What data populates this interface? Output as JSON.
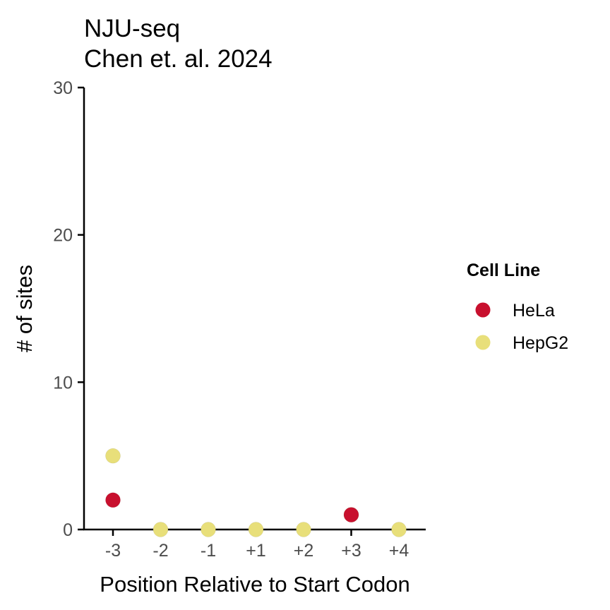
{
  "chart_data": {
    "type": "scatter",
    "title": "NJU-seq",
    "subtitle": "Chen et. al. 2024",
    "xlabel": "Position Relative to Start Codon",
    "ylabel": "# of sites",
    "categories": [
      "-3",
      "-2",
      "-1",
      "+1",
      "+2",
      "+3",
      "+4"
    ],
    "ylim": [
      0,
      30
    ],
    "yticks": [
      0,
      10,
      20,
      30
    ],
    "grid": false,
    "legend": {
      "title": "Cell Line",
      "placement": "right"
    },
    "series": [
      {
        "name": "HepG2",
        "color": "#E8DF7A",
        "values": [
          5,
          0,
          0,
          0,
          0,
          1,
          0
        ]
      },
      {
        "name": "HeLa",
        "color": "#C8102E",
        "values": [
          2,
          null,
          null,
          null,
          null,
          1,
          null
        ]
      }
    ]
  }
}
